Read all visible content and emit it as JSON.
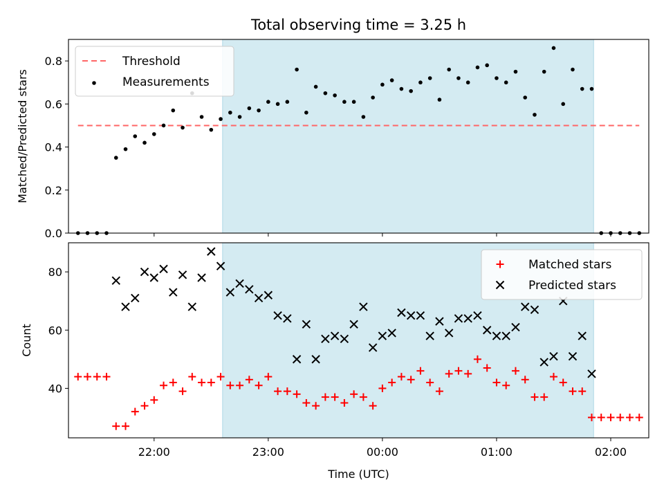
{
  "chart_data": [
    {
      "type": "scatter",
      "title": "Total observing time = 3.25 h",
      "ylabel": "Matched/Predicted stars",
      "xlabel": "",
      "ylim": [
        0,
        0.9
      ],
      "yticks": [
        "0.0",
        "0.2",
        "0.4",
        "0.6",
        "0.8"
      ],
      "xlim": [
        "21:15",
        "02:20"
      ],
      "xticks": [
        "22:00",
        "23:00",
        "00:00",
        "01:00",
        "02:00"
      ],
      "xticklabels_visible": false,
      "shaded_interval": [
        "22:36",
        "01:51"
      ],
      "shaded_color": "#add8e6",
      "threshold": {
        "name": "Threshold",
        "value": 0.5,
        "x_range": [
          "21:20",
          "02:15"
        ],
        "color": "#ff6666"
      },
      "legend": {
        "position": "upper-left",
        "entries": [
          "Threshold",
          "Measurements"
        ]
      },
      "series": [
        {
          "name": "Measurements",
          "color": "#000000",
          "marker": "dot",
          "x": [
            "21:20",
            "21:25",
            "21:30",
            "21:35",
            "21:40",
            "21:45",
            "21:50",
            "21:55",
            "22:00",
            "22:05",
            "22:10",
            "22:15",
            "22:20",
            "22:25",
            "22:30",
            "22:35",
            "22:40",
            "22:45",
            "22:50",
            "22:55",
            "23:00",
            "23:05",
            "23:10",
            "23:15",
            "23:20",
            "23:25",
            "23:30",
            "23:35",
            "23:40",
            "23:45",
            "23:50",
            "23:55",
            "00:00",
            "00:05",
            "00:10",
            "00:15",
            "00:20",
            "00:25",
            "00:30",
            "00:35",
            "00:40",
            "00:45",
            "00:50",
            "00:55",
            "01:00",
            "01:05",
            "01:10",
            "01:15",
            "01:20",
            "01:25",
            "01:30",
            "01:35",
            "01:40",
            "01:45",
            "01:50",
            "01:55",
            "02:00",
            "02:05",
            "02:10",
            "02:15"
          ],
          "y": [
            0,
            0,
            0,
            0,
            0.35,
            0.39,
            0.45,
            0.42,
            0.46,
            0.5,
            0.57,
            0.49,
            0.65,
            0.54,
            0.48,
            0.53,
            0.56,
            0.54,
            0.58,
            0.57,
            0.61,
            0.6,
            0.61,
            0.76,
            0.56,
            0.68,
            0.65,
            0.64,
            0.61,
            0.61,
            0.54,
            0.63,
            0.69,
            0.71,
            0.67,
            0.66,
            0.7,
            0.72,
            0.62,
            0.76,
            0.72,
            0.7,
            0.77,
            0.78,
            0.72,
            0.7,
            0.75,
            0.63,
            0.55,
            0.75,
            0.86,
            0.6,
            0.76,
            0.67,
            0.67,
            0,
            0,
            0,
            0,
            0
          ]
        }
      ]
    },
    {
      "type": "scatter",
      "title": "",
      "ylabel": "Count",
      "xlabel": "Time (UTC)",
      "ylim": [
        23,
        90
      ],
      "yticks": [
        "40",
        "60",
        "80"
      ],
      "xlim": [
        "21:15",
        "02:20"
      ],
      "xticks": [
        "22:00",
        "23:00",
        "00:00",
        "01:00",
        "02:00"
      ],
      "shaded_interval": [
        "22:36",
        "01:51"
      ],
      "shaded_color": "#add8e6",
      "legend": {
        "position": "upper-right",
        "entries": [
          "Matched stars",
          "Predicted stars"
        ]
      },
      "series": [
        {
          "name": "Matched stars",
          "color": "#ff0000",
          "marker": "plus",
          "x": [
            "21:20",
            "21:25",
            "21:30",
            "21:35",
            "21:40",
            "21:45",
            "21:50",
            "21:55",
            "22:00",
            "22:05",
            "22:10",
            "22:15",
            "22:20",
            "22:25",
            "22:30",
            "22:35",
            "22:40",
            "22:45",
            "22:50",
            "22:55",
            "23:00",
            "23:05",
            "23:10",
            "23:15",
            "23:20",
            "23:25",
            "23:30",
            "23:35",
            "23:40",
            "23:45",
            "23:50",
            "23:55",
            "00:00",
            "00:05",
            "00:10",
            "00:15",
            "00:20",
            "00:25",
            "00:30",
            "00:35",
            "00:40",
            "00:45",
            "00:50",
            "00:55",
            "01:00",
            "01:05",
            "01:10",
            "01:15",
            "01:20",
            "01:25",
            "01:30",
            "01:35",
            "01:40",
            "01:45",
            "01:50",
            "01:55",
            "02:00",
            "02:05",
            "02:10",
            "02:15"
          ],
          "y": [
            44,
            44,
            44,
            44,
            27,
            27,
            32,
            34,
            36,
            41,
            42,
            39,
            44,
            42,
            42,
            44,
            41,
            41,
            43,
            41,
            44,
            39,
            39,
            38,
            35,
            34,
            37,
            37,
            35,
            38,
            37,
            34,
            40,
            42,
            44,
            43,
            46,
            42,
            39,
            45,
            46,
            45,
            50,
            47,
            42,
            41,
            46,
            43,
            37,
            37,
            44,
            42,
            39,
            39,
            30,
            30,
            30,
            30,
            30,
            30
          ]
        },
        {
          "name": "Predicted stars",
          "color": "#000000",
          "marker": "x",
          "x": [
            "21:40",
            "21:45",
            "21:50",
            "21:55",
            "22:00",
            "22:05",
            "22:10",
            "22:15",
            "22:20",
            "22:25",
            "22:30",
            "22:35",
            "22:40",
            "22:45",
            "22:50",
            "22:55",
            "23:00",
            "23:05",
            "23:10",
            "23:15",
            "23:20",
            "23:25",
            "23:30",
            "23:35",
            "23:40",
            "23:45",
            "23:50",
            "23:55",
            "00:00",
            "00:05",
            "00:10",
            "00:15",
            "00:20",
            "00:25",
            "00:30",
            "00:35",
            "00:40",
            "00:45",
            "00:50",
            "00:55",
            "01:00",
            "01:05",
            "01:10",
            "01:15",
            "01:20",
            "01:25",
            "01:30",
            "01:35",
            "01:40",
            "01:45",
            "01:50"
          ],
          "y": [
            77,
            68,
            71,
            80,
            78,
            81,
            73,
            79,
            68,
            78,
            87,
            82,
            73,
            76,
            74,
            71,
            72,
            65,
            64,
            50,
            62,
            50,
            57,
            58,
            57,
            62,
            68,
            54,
            58,
            59,
            66,
            65,
            65,
            58,
            63,
            59,
            64,
            64,
            65,
            60,
            58,
            58,
            61,
            68,
            67,
            49,
            51,
            70,
            51,
            58,
            45
          ]
        }
      ]
    }
  ]
}
